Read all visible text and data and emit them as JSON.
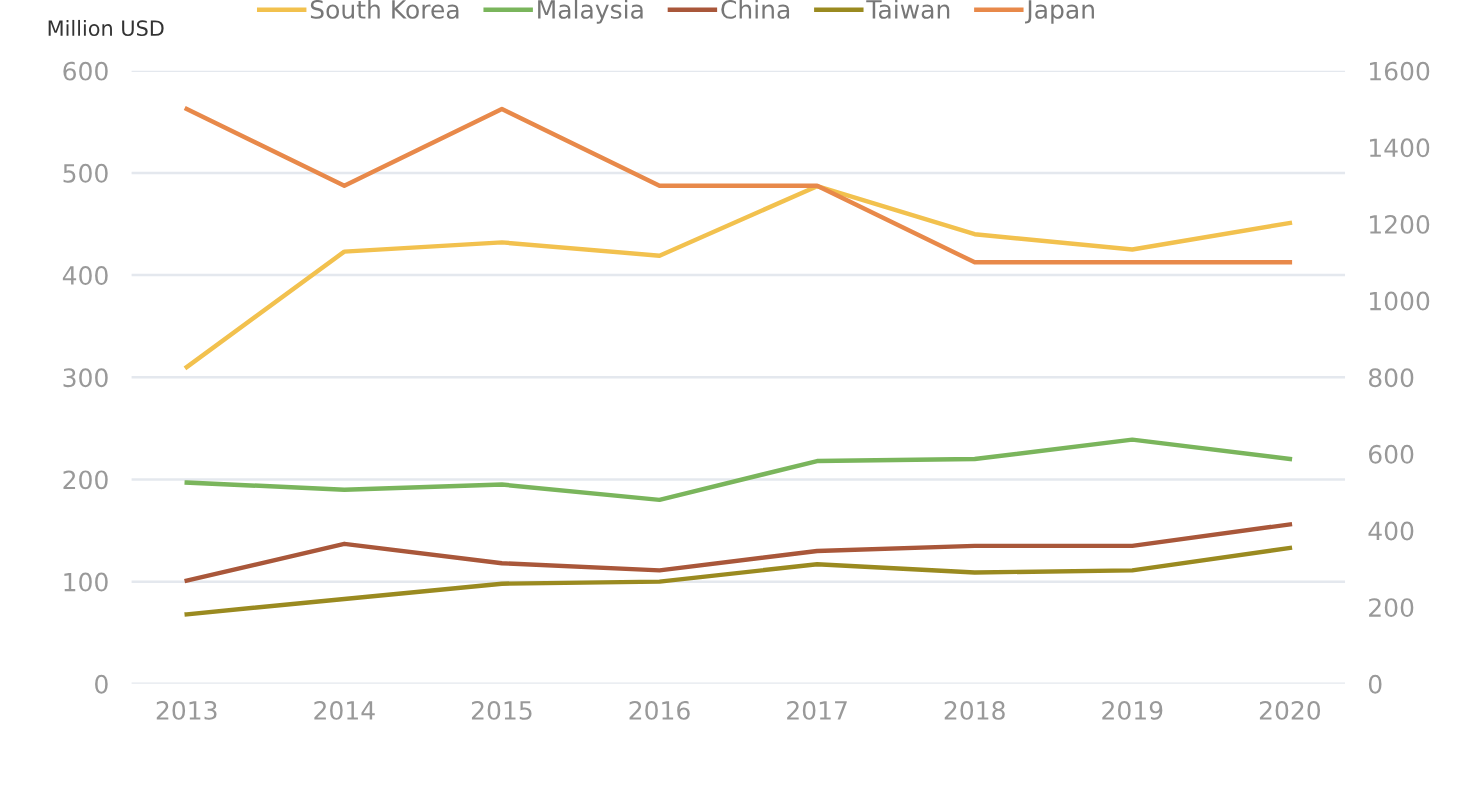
{
  "chart_data": {
    "type": "line",
    "ylabel": "Million USD",
    "categories": [
      "2013",
      "2014",
      "2015",
      "2016",
      "2017",
      "2018",
      "2019",
      "2020"
    ],
    "series": [
      {
        "name": "South Korea",
        "color": "#f2c14e",
        "values": [
          310,
          423,
          432,
          419,
          487,
          440,
          425,
          451
        ]
      },
      {
        "name": "Malaysia",
        "color": "#7ab55c",
        "values": [
          197,
          190,
          195,
          180,
          218,
          220,
          239,
          220
        ]
      },
      {
        "name": "China",
        "color": "#a9573a",
        "values": [
          101,
          137,
          118,
          111,
          130,
          135,
          135,
          156
        ]
      },
      {
        "name": "Taiwan",
        "color": "#9a8a20",
        "values": [
          68,
          83,
          98,
          100,
          117,
          109,
          111,
          133
        ]
      },
      {
        "name": "Japan",
        "color": "#e8894a",
        "axis": "y2",
        "values": [
          1500,
          1300,
          1500,
          1300,
          1300,
          1100,
          1100,
          1100
        ]
      }
    ],
    "ylim": [
      0,
      600
    ],
    "yticks": [
      0,
      100,
      200,
      300,
      400,
      500,
      600
    ],
    "y2lim": [
      0,
      1600
    ],
    "y2ticks": [
      0,
      200,
      400,
      600,
      800,
      1000,
      1200,
      1400,
      1600
    ],
    "grid": "y",
    "legend": "top",
    "marker": "none",
    "line_style": "solid"
  }
}
